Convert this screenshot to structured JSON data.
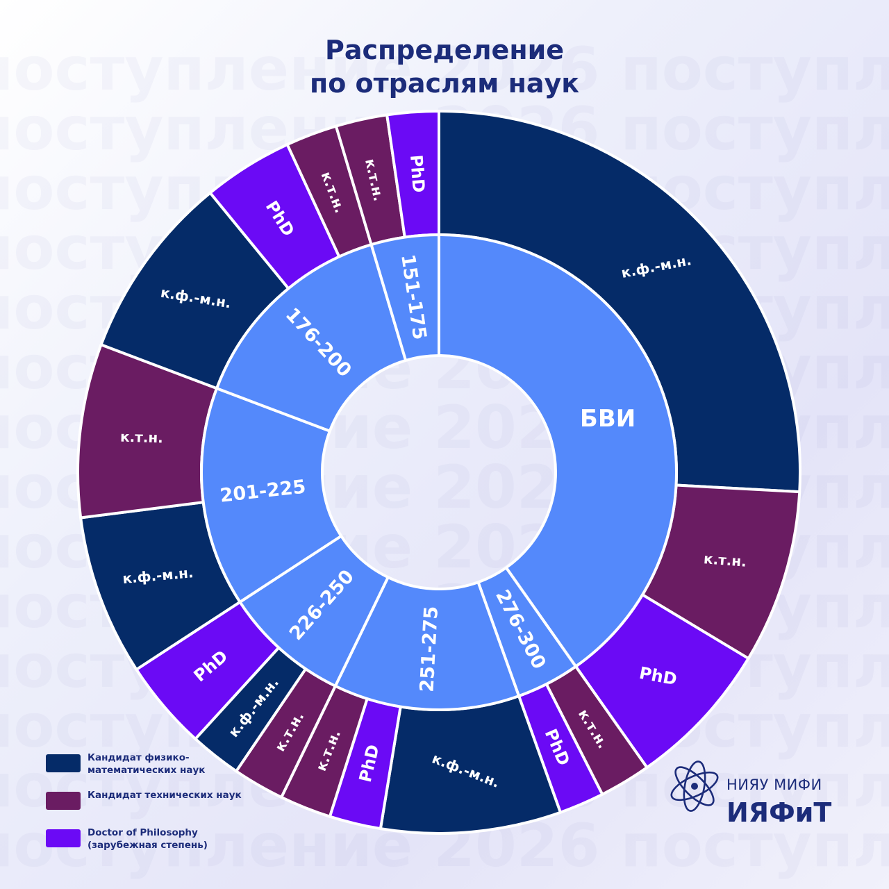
{
  "title": {
    "line1": "Распределение",
    "line2": "по отраслям наук"
  },
  "watermark_text": "поступление 2026 поступление 2026",
  "colors": {
    "inner": "#5489fb",
    "kfmn": "#052b68",
    "ktn": "#6a1c62",
    "phd": "#6b0af5",
    "background": "#f0f0fb",
    "title": "#1c2c7a"
  },
  "legend": [
    {
      "key": "kfmn",
      "label": "Кандидат физико-математических наук"
    },
    {
      "key": "ktn",
      "label": "Кандидат технических наук"
    },
    {
      "key": "phd",
      "label": "Doctor of Philosophy (зарубежная степень)"
    }
  ],
  "chart_data": {
    "type": "sunburst",
    "inner": [
      {
        "name": "БВИ",
        "children": [
          {
            "type": "kfmn",
            "label": "к.ф.-м.н.",
            "value": 90
          },
          {
            "type": "ktn",
            "label": "к.т.н.",
            "value": 27
          },
          {
            "type": "phd",
            "label": "PhD",
            "value": 23
          }
        ]
      },
      {
        "name": "276-300",
        "children": [
          {
            "type": "ktn",
            "label": "к.т.н.",
            "value": 8
          },
          {
            "type": "phd",
            "label": "PhD",
            "value": 7
          }
        ]
      },
      {
        "name": "251-275",
        "children": [
          {
            "type": "kfmn",
            "label": "к.ф.-м.н.",
            "value": 28
          },
          {
            "type": "phd",
            "label": "PhD",
            "value": 8
          },
          {
            "type": "ktn",
            "label": "к.т.н.",
            "value": 8
          }
        ]
      },
      {
        "name": "226-250",
        "children": [
          {
            "type": "ktn",
            "label": "к.т.н.",
            "value": 8
          },
          {
            "type": "kfmn",
            "label": "к.ф.-м.н.",
            "value": 8
          },
          {
            "type": "phd",
            "label": "PhD",
            "value": 14
          }
        ]
      },
      {
        "name": "201-225",
        "children": [
          {
            "type": "kfmn",
            "label": "к.ф.-м.н.",
            "value": 25
          },
          {
            "type": "ktn",
            "label": "к.т.н.",
            "value": 27
          }
        ]
      },
      {
        "name": "176-200",
        "children": [
          {
            "type": "kfmn",
            "label": "к.ф.-м.н.",
            "value": 29
          },
          {
            "type": "phd",
            "label": "PhD",
            "value": 14
          },
          {
            "type": "ktn",
            "label": "к.т.н.",
            "value": 8
          }
        ]
      },
      {
        "name": "151-175",
        "children": [
          {
            "type": "ktn",
            "label": "к.т.н.",
            "value": 8
          },
          {
            "type": "phd",
            "label": "PhD",
            "value": 8
          }
        ]
      }
    ]
  },
  "logo": {
    "org": "НИЯУ МИФИ",
    "name": "ИЯФиТ"
  }
}
